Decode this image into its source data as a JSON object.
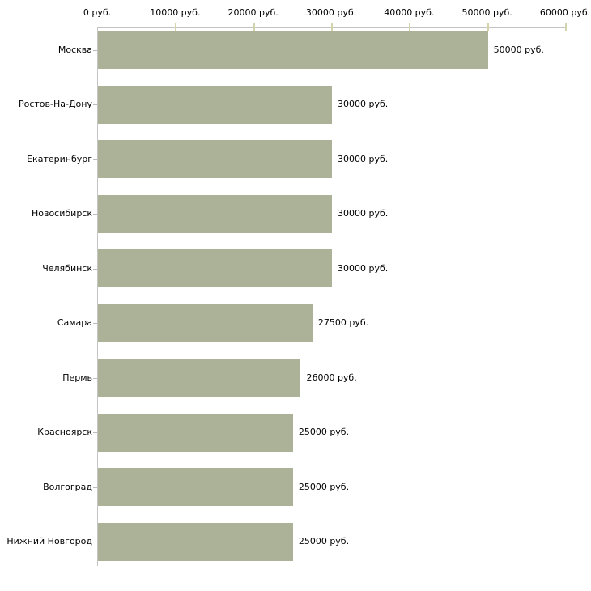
{
  "chart_data": {
    "type": "bar",
    "orientation": "horizontal",
    "title": "",
    "xlabel": "",
    "ylabel": "",
    "unit": "руб.",
    "xlim": [
      0,
      60000
    ],
    "x_tick_values": [
      0,
      10000,
      20000,
      30000,
      40000,
      50000,
      60000
    ],
    "x_tick_labels": [
      "0 руб.",
      "10000 руб.",
      "20000 руб.",
      "30000 руб.",
      "40000 руб.",
      "50000 руб.",
      "60000 руб."
    ],
    "categories": [
      "Москва",
      "Ростов-На-Дону",
      "Екатеринбург",
      "Новосибирск",
      "Челябинск",
      "Самара",
      "Пермь",
      "Красноярск",
      "Волгоград",
      "Нижний Новгород"
    ],
    "values": [
      50000,
      30000,
      30000,
      30000,
      30000,
      27500,
      26000,
      25000,
      25000,
      25000
    ],
    "value_labels": [
      "50000 руб.",
      "30000 руб.",
      "30000 руб.",
      "30000 руб.",
      "30000 руб.",
      "27500 руб.",
      "26000 руб.",
      "25000 руб.",
      "25000 руб.",
      "25000 руб."
    ],
    "grid": false,
    "legend": false,
    "axis_position": "top",
    "colors": {
      "bar": "#acb298",
      "axis_line": "#c4c4c4",
      "x_tick": "#d4d4aa",
      "category_tick": "#bdbdbd",
      "text": "#000000",
      "background": "#ffffff"
    }
  }
}
